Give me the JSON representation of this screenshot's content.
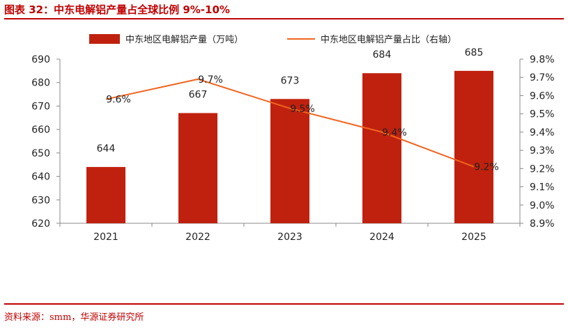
{
  "header": {
    "title": "图表 32：中东电解铝产量占全球比例 9%-10%"
  },
  "footer": {
    "source": "资料来源：smm，华源证券研究所"
  },
  "colors": {
    "bar": "#C0210E",
    "line": "#F0641E",
    "accent": "#C00000"
  },
  "chart_data": {
    "type": "bar",
    "categories": [
      "2021",
      "2022",
      "2023",
      "2024",
      "2025"
    ],
    "series": [
      {
        "name": "中东地区电解铝产量（万吨）",
        "type": "bar",
        "axis": "left",
        "values": [
          644,
          667,
          673,
          684,
          685
        ],
        "labels": [
          "644",
          "667",
          "673",
          "684",
          "685"
        ]
      },
      {
        "name": "中东地区电解铝产量占比（右轴）",
        "type": "line",
        "axis": "right",
        "values": [
          9.58,
          9.69,
          9.53,
          9.4,
          9.21
        ],
        "labels": [
          "9.6%",
          "9.7%",
          "9.5%",
          "9.4%",
          "9.2%"
        ]
      }
    ],
    "y_left": {
      "ylim": [
        620,
        690
      ],
      "ticks": [
        "620",
        "630",
        "640",
        "650",
        "660",
        "670",
        "680",
        "690"
      ]
    },
    "y_right": {
      "ylim": [
        8.9,
        9.8
      ],
      "ticks": [
        "8.9%",
        "9.0%",
        "9.1%",
        "9.2%",
        "9.3%",
        "9.4%",
        "9.5%",
        "9.6%",
        "9.7%",
        "9.8%"
      ]
    },
    "legend_position": "top",
    "grid": false
  }
}
